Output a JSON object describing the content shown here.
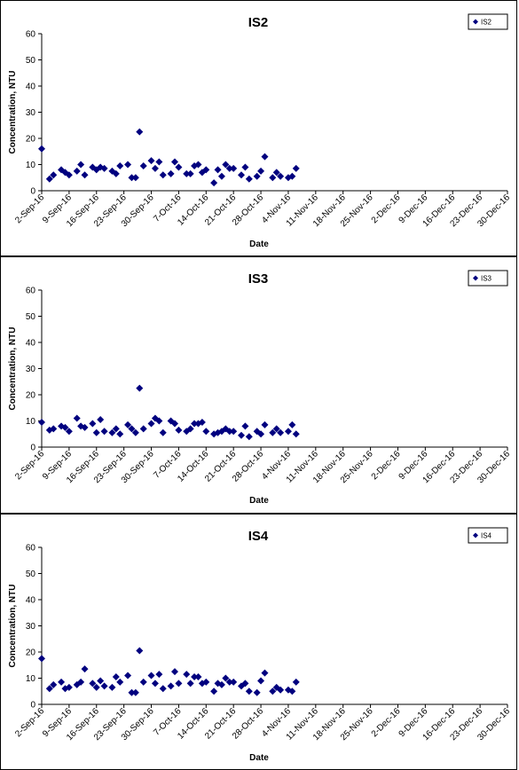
{
  "chart_data": [
    {
      "type": "scatter",
      "title": "IS2",
      "xlabel": "Date",
      "ylabel": "Concentration, NTU",
      "ylim": [
        0,
        60
      ],
      "yticks": [
        0,
        10,
        20,
        30,
        40,
        50,
        60
      ],
      "x_tick_labels": [
        "2-Sep-16",
        "9-Sep-16",
        "16-Sep-16",
        "23-Sep-16",
        "30-Sep-16",
        "7-Oct-16",
        "14-Oct-16",
        "21-Oct-16",
        "28-Oct-16",
        "4-Nov-16",
        "11-Nov-16",
        "18-Nov-16",
        "25-Nov-16",
        "2-Dec-16",
        "9-Dec-16",
        "16-Dec-16",
        "23-Dec-16",
        "30-Dec-16"
      ],
      "legend": "top-right",
      "series": [
        {
          "name": "IS2",
          "color": "#00007f",
          "points": [
            [
              "2016-09-02",
              16
            ],
            [
              "2016-09-04",
              4.5
            ],
            [
              "2016-09-05",
              6
            ],
            [
              "2016-09-07",
              8
            ],
            [
              "2016-09-08",
              7
            ],
            [
              "2016-09-09",
              6
            ],
            [
              "2016-09-11",
              7.5
            ],
            [
              "2016-09-12",
              10
            ],
            [
              "2016-09-13",
              6
            ],
            [
              "2016-09-15",
              9
            ],
            [
              "2016-09-16",
              8
            ],
            [
              "2016-09-17",
              9
            ],
            [
              "2016-09-18",
              8.5
            ],
            [
              "2016-09-20",
              7.5
            ],
            [
              "2016-09-21",
              6.5
            ],
            [
              "2016-09-22",
              9.5
            ],
            [
              "2016-09-24",
              10
            ],
            [
              "2016-09-25",
              5
            ],
            [
              "2016-09-26",
              5
            ],
            [
              "2016-09-27",
              22.5
            ],
            [
              "2016-09-28",
              9.5
            ],
            [
              "2016-09-30",
              11.5
            ],
            [
              "2016-10-01",
              8.5
            ],
            [
              "2016-10-02",
              11
            ],
            [
              "2016-10-03",
              6
            ],
            [
              "2016-10-05",
              6.5
            ],
            [
              "2016-10-06",
              11
            ],
            [
              "2016-10-07",
              9
            ],
            [
              "2016-10-09",
              6.5
            ],
            [
              "2016-10-10",
              6.5
            ],
            [
              "2016-10-11",
              9.5
            ],
            [
              "2016-10-12",
              10
            ],
            [
              "2016-10-13",
              7
            ],
            [
              "2016-10-14",
              8
            ],
            [
              "2016-10-16",
              3
            ],
            [
              "2016-10-17",
              8
            ],
            [
              "2016-10-18",
              5.5
            ],
            [
              "2016-10-19",
              10
            ],
            [
              "2016-10-20",
              8.5
            ],
            [
              "2016-10-21",
              8.5
            ],
            [
              "2016-10-23",
              6
            ],
            [
              "2016-10-24",
              9
            ],
            [
              "2016-10-25",
              4.5
            ],
            [
              "2016-10-27",
              5.5
            ],
            [
              "2016-10-28",
              7.5
            ],
            [
              "2016-10-29",
              13
            ],
            [
              "2016-10-31",
              5
            ],
            [
              "2016-11-01",
              7
            ],
            [
              "2016-11-02",
              5.5
            ],
            [
              "2016-11-04",
              5
            ],
            [
              "2016-11-05",
              5.5
            ],
            [
              "2016-11-06",
              8.5
            ]
          ]
        }
      ]
    },
    {
      "type": "scatter",
      "title": "IS3",
      "xlabel": "Date",
      "ylabel": "Concentration, NTU",
      "ylim": [
        0,
        60
      ],
      "yticks": [
        0,
        10,
        20,
        30,
        40,
        50,
        60
      ],
      "x_tick_labels": [
        "2-Sep-16",
        "9-Sep-16",
        "16-Sep-16",
        "23-Sep-16",
        "30-Sep-16",
        "7-Oct-16",
        "14-Oct-16",
        "21-Oct-16",
        "28-Oct-16",
        "4-Nov-16",
        "11-Nov-16",
        "18-Nov-16",
        "25-Nov-16",
        "2-Dec-16",
        "9-Dec-16",
        "16-Dec-16",
        "23-Dec-16",
        "30-Dec-16"
      ],
      "legend": "top-right",
      "series": [
        {
          "name": "IS3",
          "color": "#00007f",
          "points": [
            [
              "2016-09-02",
              9.5
            ],
            [
              "2016-09-04",
              6.5
            ],
            [
              "2016-09-05",
              7
            ],
            [
              "2016-09-07",
              8
            ],
            [
              "2016-09-08",
              7.5
            ],
            [
              "2016-09-09",
              6
            ],
            [
              "2016-09-11",
              11
            ],
            [
              "2016-09-12",
              8
            ],
            [
              "2016-09-13",
              7.5
            ],
            [
              "2016-09-15",
              9
            ],
            [
              "2016-09-16",
              5.5
            ],
            [
              "2016-09-17",
              10.5
            ],
            [
              "2016-09-18",
              6
            ],
            [
              "2016-09-20",
              5.5
            ],
            [
              "2016-09-21",
              7
            ],
            [
              "2016-09-22",
              5
            ],
            [
              "2016-09-24",
              8.5
            ],
            [
              "2016-09-25",
              7
            ],
            [
              "2016-09-26",
              5.5
            ],
            [
              "2016-09-27",
              22.5
            ],
            [
              "2016-09-28",
              7
            ],
            [
              "2016-09-30",
              9
            ],
            [
              "2016-10-01",
              11
            ],
            [
              "2016-10-02",
              10
            ],
            [
              "2016-10-03",
              5.5
            ],
            [
              "2016-10-05",
              10
            ],
            [
              "2016-10-06",
              9
            ],
            [
              "2016-10-07",
              6.5
            ],
            [
              "2016-10-09",
              6
            ],
            [
              "2016-10-10",
              7
            ],
            [
              "2016-10-11",
              9
            ],
            [
              "2016-10-12",
              9
            ],
            [
              "2016-10-13",
              9.5
            ],
            [
              "2016-10-14",
              6
            ],
            [
              "2016-10-16",
              5
            ],
            [
              "2016-10-17",
              5.5
            ],
            [
              "2016-10-18",
              6
            ],
            [
              "2016-10-19",
              7
            ],
            [
              "2016-10-20",
              6
            ],
            [
              "2016-10-21",
              6
            ],
            [
              "2016-10-23",
              4.5
            ],
            [
              "2016-10-24",
              8
            ],
            [
              "2016-10-25",
              4
            ],
            [
              "2016-10-27",
              6
            ],
            [
              "2016-10-28",
              5
            ],
            [
              "2016-10-29",
              8.5
            ],
            [
              "2016-10-31",
              5.5
            ],
            [
              "2016-11-01",
              7
            ],
            [
              "2016-11-02",
              5.5
            ],
            [
              "2016-11-04",
              6
            ],
            [
              "2016-11-05",
              8.5
            ],
            [
              "2016-11-06",
              5
            ]
          ]
        }
      ]
    },
    {
      "type": "scatter",
      "title": "IS4",
      "xlabel": "Date",
      "ylabel": "Concentration, NTU",
      "ylim": [
        0,
        60
      ],
      "yticks": [
        0,
        10,
        20,
        30,
        40,
        50,
        60
      ],
      "x_tick_labels": [
        "2-Sep-16",
        "9-Sep-16",
        "16-Sep-16",
        "23-Sep-16",
        "30-Sep-16",
        "7-Oct-16",
        "14-Oct-16",
        "21-Oct-16",
        "28-Oct-16",
        "4-Nov-16",
        "11-Nov-16",
        "18-Nov-16",
        "25-Nov-16",
        "2-Dec-16",
        "9-Dec-16",
        "16-Dec-16",
        "23-Dec-16",
        "30-Dec-16"
      ],
      "legend": "top-right",
      "series": [
        {
          "name": "IS4",
          "color": "#00007f",
          "points": [
            [
              "2016-09-02",
              17.5
            ],
            [
              "2016-09-04",
              6
            ],
            [
              "2016-09-05",
              7.5
            ],
            [
              "2016-09-07",
              8.5
            ],
            [
              "2016-09-08",
              6
            ],
            [
              "2016-09-09",
              6.5
            ],
            [
              "2016-09-11",
              7.5
            ],
            [
              "2016-09-12",
              8.5
            ],
            [
              "2016-09-13",
              13.5
            ],
            [
              "2016-09-15",
              8
            ],
            [
              "2016-09-16",
              6.5
            ],
            [
              "2016-09-17",
              9
            ],
            [
              "2016-09-18",
              7
            ],
            [
              "2016-09-20",
              6.5
            ],
            [
              "2016-09-21",
              10.5
            ],
            [
              "2016-09-22",
              8.5
            ],
            [
              "2016-09-24",
              11
            ],
            [
              "2016-09-25",
              4.5
            ],
            [
              "2016-09-26",
              4.5
            ],
            [
              "2016-09-27",
              20.5
            ],
            [
              "2016-09-28",
              8.5
            ],
            [
              "2016-09-30",
              11
            ],
            [
              "2016-10-01",
              8
            ],
            [
              "2016-10-02",
              11.5
            ],
            [
              "2016-10-03",
              6
            ],
            [
              "2016-10-05",
              7
            ],
            [
              "2016-10-06",
              12.5
            ],
            [
              "2016-10-07",
              8
            ],
            [
              "2016-10-09",
              11.5
            ],
            [
              "2016-10-10",
              8
            ],
            [
              "2016-10-11",
              10.5
            ],
            [
              "2016-10-12",
              10.5
            ],
            [
              "2016-10-13",
              8
            ],
            [
              "2016-10-14",
              8.5
            ],
            [
              "2016-10-16",
              5
            ],
            [
              "2016-10-17",
              8
            ],
            [
              "2016-10-18",
              7.5
            ],
            [
              "2016-10-19",
              10
            ],
            [
              "2016-10-20",
              8.5
            ],
            [
              "2016-10-21",
              8.5
            ],
            [
              "2016-10-23",
              7
            ],
            [
              "2016-10-24",
              8
            ],
            [
              "2016-10-25",
              5
            ],
            [
              "2016-10-27",
              4.5
            ],
            [
              "2016-10-28",
              9
            ],
            [
              "2016-10-29",
              12
            ],
            [
              "2016-10-31",
              5
            ],
            [
              "2016-11-01",
              6.5
            ],
            [
              "2016-11-02",
              5.5
            ],
            [
              "2016-11-04",
              5.5
            ],
            [
              "2016-11-05",
              5
            ],
            [
              "2016-11-06",
              8.5
            ]
          ]
        }
      ]
    }
  ]
}
